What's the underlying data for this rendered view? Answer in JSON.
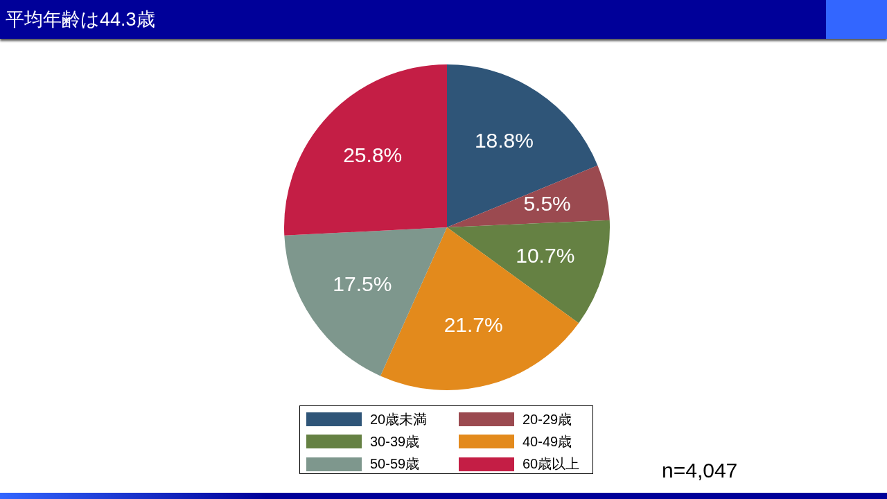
{
  "chart_data": {
    "type": "pie",
    "title": "平均年齢は44.3歳",
    "categories": [
      "20歳未満",
      "20-29歳",
      "30-39歳",
      "40-49歳",
      "50-59歳",
      "60歳以上"
    ],
    "values": [
      18.8,
      5.5,
      10.7,
      21.7,
      17.5,
      25.8
    ],
    "colors": [
      "#2f5578",
      "#9b4a50",
      "#658143",
      "#e38a1c",
      "#7e978d",
      "#c41e45"
    ],
    "value_labels": [
      "18.8%",
      "5.5%",
      "10.7%",
      "21.7%",
      "17.5%",
      "25.8%"
    ],
    "legend": "bottom",
    "annotations": [
      "n=4,047"
    ]
  }
}
